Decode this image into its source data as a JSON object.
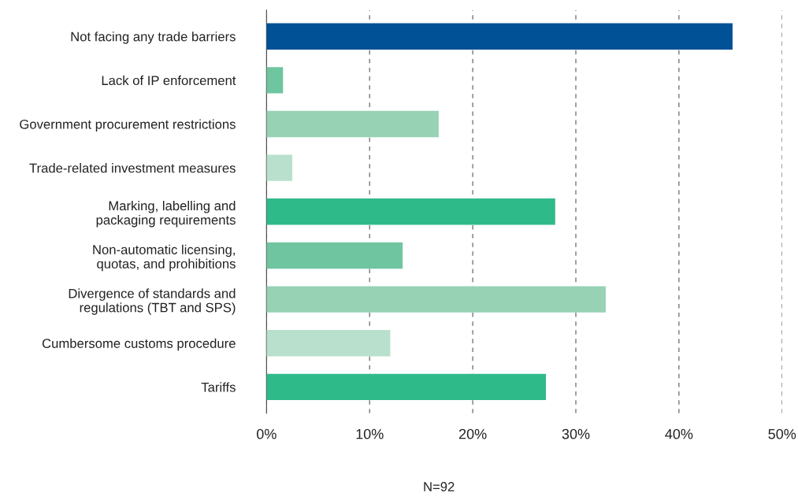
{
  "chart_data": {
    "type": "bar",
    "orientation": "horizontal",
    "categories": [
      "Not facing any trade barriers",
      "Lack of IP enforcement",
      "Government procurement restrictions",
      "Trade-related investment measures",
      "Marking, labelling and\npackaging requirements",
      "Non-automatic licensing,\nquotas, and prohibitions",
      "Divergence of standards and\nregulations (TBT and SPS)",
      "Cumbersome customs procedure",
      "Tariffs"
    ],
    "values": [
      45.2,
      1.6,
      16.7,
      2.5,
      28.0,
      13.2,
      32.9,
      12.0,
      27.1
    ],
    "colors": [
      "#005195",
      "#6fc5a0",
      "#97d2b4",
      "#b9e0cd",
      "#2fba8a",
      "#6fc5a0",
      "#97d2b4",
      "#b9e0cd",
      "#2fba8a"
    ],
    "xlim": [
      0,
      50
    ],
    "xticks": [
      {
        "value": 0,
        "label": "0%"
      },
      {
        "value": 10,
        "label": "10%"
      },
      {
        "value": 20,
        "label": "20%"
      },
      {
        "value": 30,
        "label": "30%"
      },
      {
        "value": 40,
        "label": "40%"
      },
      {
        "value": 50,
        "label": "50%"
      }
    ],
    "grid": "x",
    "annotations": [
      "N=92"
    ]
  }
}
